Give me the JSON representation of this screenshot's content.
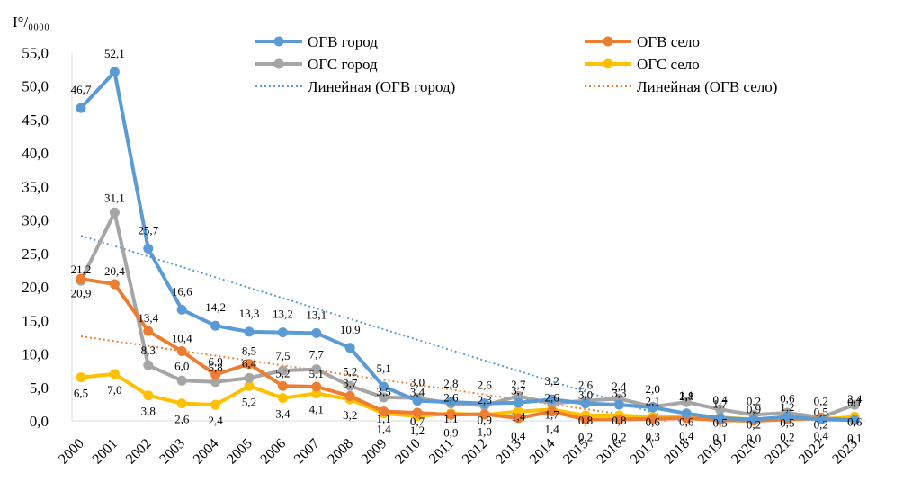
{
  "chart_data": {
    "type": "line",
    "ylabel": "I°/₀₀₀₀",
    "ylim": [
      0,
      55
    ],
    "yticks": [
      "0,0",
      "5,0",
      "10,0",
      "15,0",
      "20,0",
      "25,0",
      "30,0",
      "35,0",
      "40,0",
      "45,0",
      "50,0",
      "55,0"
    ],
    "categories": [
      "2000",
      "2001",
      "2002",
      "2003",
      "2004",
      "2005",
      "2006",
      "2007",
      "2008",
      "2009",
      "2010",
      "2011",
      "2012",
      "2013",
      "2014",
      "2015",
      "2016",
      "2017",
      "2018",
      "2019",
      "2020",
      "2021",
      "2022",
      "2023"
    ],
    "grid": false,
    "legend_position": "top",
    "series": [
      {
        "name": "ОГВ город",
        "color": "#5B9BD5",
        "values": [
          46.7,
          52.1,
          25.7,
          16.6,
          14.2,
          13.3,
          13.2,
          13.1,
          10.9,
          5.1,
          3.0,
          2.8,
          2.6,
          2.7,
          3.2,
          2.6,
          2.4,
          2.0,
          1.1,
          0.4,
          0.2,
          0.6,
          0.2,
          0.1
        ],
        "labels": [
          "46,7",
          "52,1",
          "25,7",
          "16,6",
          "14,2",
          "13,3",
          "13,2",
          "13,1",
          "10,9",
          "5,1",
          "3,0",
          "2,8",
          "2,6",
          "2,7",
          "3,2",
          "2,6",
          "2,4",
          "2,0",
          "1,1",
          "0,4",
          "0,2",
          "0,6",
          "0,2",
          "0,1"
        ]
      },
      {
        "name": "ОГВ село",
        "color": "#ED7D31",
        "values": [
          21.2,
          20.4,
          13.4,
          10.4,
          6.9,
          8.5,
          5.2,
          5.1,
          3.7,
          1.4,
          1.2,
          0.9,
          1.0,
          0.4,
          1.4,
          0.2,
          0.2,
          0.3,
          0.4,
          0.1,
          0.0,
          0.2,
          0.4,
          0.1
        ],
        "labels": [
          "21,2",
          "20,4",
          "13,4",
          "10,4",
          "6,9",
          "8,5",
          "5,2",
          "5,1",
          "3,7",
          "1,4",
          "1,2",
          "0,9",
          "1,0",
          "0,4",
          "1,4",
          "0,2",
          "0,2",
          "0,3",
          "0,4",
          "0,1",
          "0,0",
          "0,2",
          "0,4",
          "0,1"
        ]
      },
      {
        "name": "ОГС город",
        "color": "#A5A5A5",
        "values": [
          20.9,
          31.1,
          8.3,
          6.0,
          5.8,
          6.4,
          7.5,
          7.7,
          5.2,
          3.5,
          3.4,
          2.6,
          2.3,
          3.7,
          2.6,
          3.0,
          3.3,
          2.1,
          2.8,
          1.7,
          0.9,
          1.2,
          0.5,
          2.4
        ],
        "labels": [
          "20,9",
          "31,1",
          "8,3",
          "6,0",
          "5,8",
          "6,4",
          "7,5",
          "7,7",
          "5,2",
          "3,5",
          "3,4",
          "2,6",
          "2,3",
          "3,7",
          "2,6",
          "3,0",
          "3,3",
          "2,1",
          "2,8",
          "1,7",
          "0,9",
          "1,2",
          "0,5",
          "2,4"
        ]
      },
      {
        "name": "ОГС село",
        "color": "#FFC000",
        "values": [
          6.5,
          7.0,
          3.8,
          2.6,
          2.4,
          5.2,
          3.4,
          4.1,
          3.2,
          1.1,
          0.7,
          1.1,
          0.9,
          1.4,
          1.7,
          0.8,
          0.8,
          0.6,
          0.6,
          0.5,
          0.2,
          0.5,
          0.2,
          0.6
        ],
        "labels": [
          "6,5",
          "7,0",
          "3,8",
          "2,6",
          "2,4",
          "5,2",
          "3,4",
          "4,1",
          "3,2",
          "1,1",
          "0,7",
          "1,1",
          "0,9",
          "1,4",
          "1,7",
          "0,8",
          "0,8",
          "0,6",
          "0,6",
          "0,5",
          "0,2",
          "0,5",
          "0,2",
          "0,6"
        ]
      }
    ],
    "trendlines": [
      {
        "name": "Линейная (ОГВ город)",
        "color": "#5B9BD5"
      },
      {
        "name": "Линейная (ОГВ село)",
        "color": "#ED7D31"
      }
    ]
  }
}
